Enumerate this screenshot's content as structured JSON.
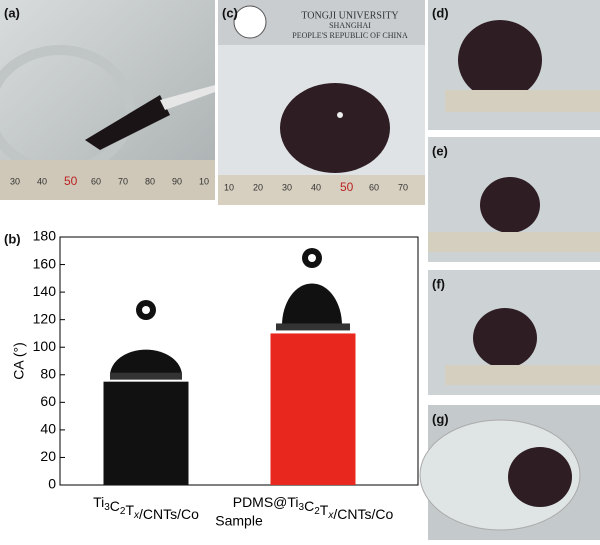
{
  "panel_labels": [
    "(a)",
    "(b)",
    "(c)",
    "(d)",
    "(e)",
    "(f)",
    "(g)"
  ],
  "logo": {
    "line1": "TONGJI UNIVERSITY",
    "line2": "SHANGHAI",
    "line3": "PEOPLE'S REPUBLIC OF CHINA"
  },
  "rulers": {
    "a": [
      "30",
      "40",
      "50",
      "60",
      "70",
      "80",
      "90",
      "10"
    ],
    "c": [
      "10",
      "20",
      "30",
      "40",
      "50",
      "60",
      "70"
    ]
  },
  "chart_data": {
    "type": "bar",
    "categories": [
      "Ti3C2Tx/CNTs/Co",
      "PDMS@Ti3C2Tx/CNTs/Co"
    ],
    "values": [
      75,
      110
    ],
    "colors": [
      "#111111",
      "#e8281e"
    ],
    "ylim": [
      0,
      180
    ],
    "yticks": [
      0,
      20,
      40,
      60,
      80,
      100,
      120,
      140,
      160,
      180
    ],
    "x_label": "Sample",
    "y_label": "CA (°)"
  }
}
